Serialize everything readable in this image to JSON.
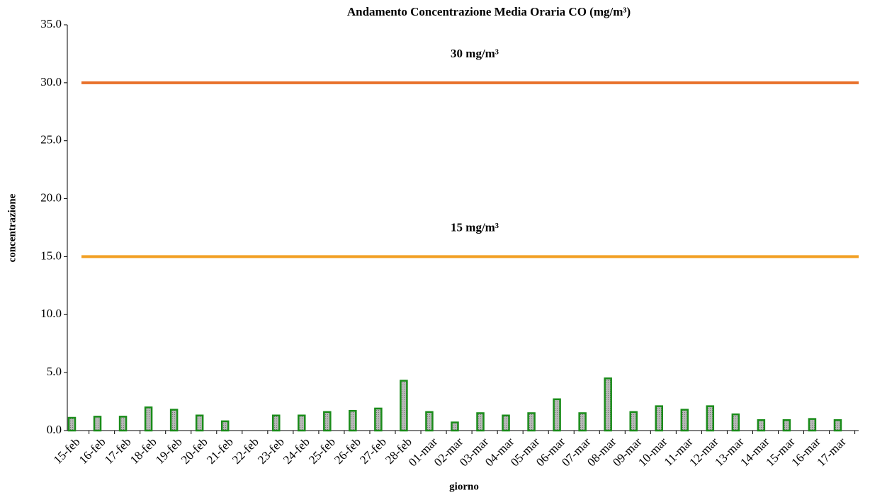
{
  "chart_data": {
    "type": "bar",
    "title": "Andamento Concentrazione Media Oraria CO (mg/m³)",
    "xlabel": "giorno",
    "ylabel": "concentrazione",
    "categories": [
      "15-feb",
      "16-feb",
      "17-feb",
      "18-feb",
      "19-feb",
      "20-feb",
      "21-feb",
      "22-feb",
      "23-feb",
      "24-feb",
      "25-feb",
      "26-feb",
      "27-feb",
      "28-feb",
      "01-mar",
      "02-mar",
      "03-mar",
      "04-mar",
      "05-mar",
      "06-mar",
      "07-mar",
      "08-mar",
      "09-mar",
      "10-mar",
      "11-mar",
      "12-mar",
      "13-mar",
      "14-mar",
      "15-mar",
      "16-mar",
      "17-mar"
    ],
    "values": [
      1.1,
      1.2,
      1.2,
      2.0,
      1.8,
      1.3,
      0.8,
      null,
      1.3,
      1.3,
      1.6,
      1.7,
      1.9,
      4.3,
      1.6,
      0.7,
      1.5,
      1.3,
      1.5,
      2.7,
      1.5,
      4.5,
      1.6,
      2.1,
      1.8,
      2.1,
      1.4,
      0.9,
      0.9,
      1.0,
      0.9
    ],
    "color": "#a0a0a0",
    "edge_color": "#1a8c1a",
    "ylim": [
      0,
      35
    ],
    "yticks": [
      {
        "value": 0,
        "label": "0.0"
      },
      {
        "value": 5,
        "label": "5.0"
      },
      {
        "value": 10,
        "label": "10.0"
      },
      {
        "value": 15,
        "label": "15.0"
      },
      {
        "value": 20,
        "label": "20.0"
      },
      {
        "value": 25,
        "label": "25.0"
      },
      {
        "value": 30,
        "label": "30.0"
      },
      {
        "value": 35,
        "label": "35.0"
      }
    ],
    "reference_lines": [
      {
        "value": 30,
        "label": "30 mg/m³",
        "color": "#e8702a"
      },
      {
        "value": 15,
        "label": "15 mg/m³",
        "color": "#f2a024"
      }
    ]
  }
}
